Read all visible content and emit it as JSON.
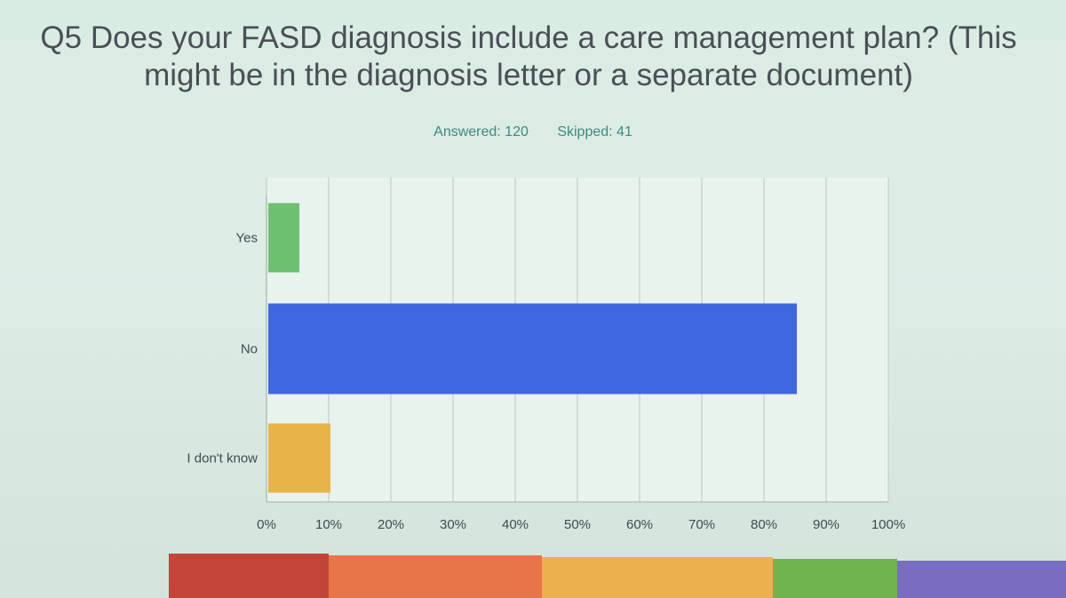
{
  "slide": {
    "title_line1": "Q5 Does your FASD diagnosis include a care management plan? (This",
    "title_line2": "might be in the diagnosis letter or a separate document)",
    "answered": "Answered: 120",
    "skipped": "Skipped: 41"
  },
  "chart_data": {
    "type": "bar",
    "orientation": "horizontal",
    "title": "Q5 Does your FASD diagnosis include a care management plan? (This might be in the diagnosis letter or a separate document)",
    "categories": [
      "Yes",
      "No",
      "I don't know"
    ],
    "values": [
      5,
      85,
      10
    ],
    "colors": [
      "#6cc070",
      "#3f67e0",
      "#e8b347"
    ],
    "xlim": [
      0,
      100
    ],
    "xticks": [
      "0%",
      "10%",
      "20%",
      "30%",
      "40%",
      "50%",
      "60%",
      "70%",
      "80%",
      "90%",
      "100%"
    ],
    "grid": true
  },
  "footer_colors": [
    "#c4443a",
    "#e8744a",
    "#eab14e",
    "#6fb44e",
    "#7a6cc0",
    "#5a7df0"
  ]
}
